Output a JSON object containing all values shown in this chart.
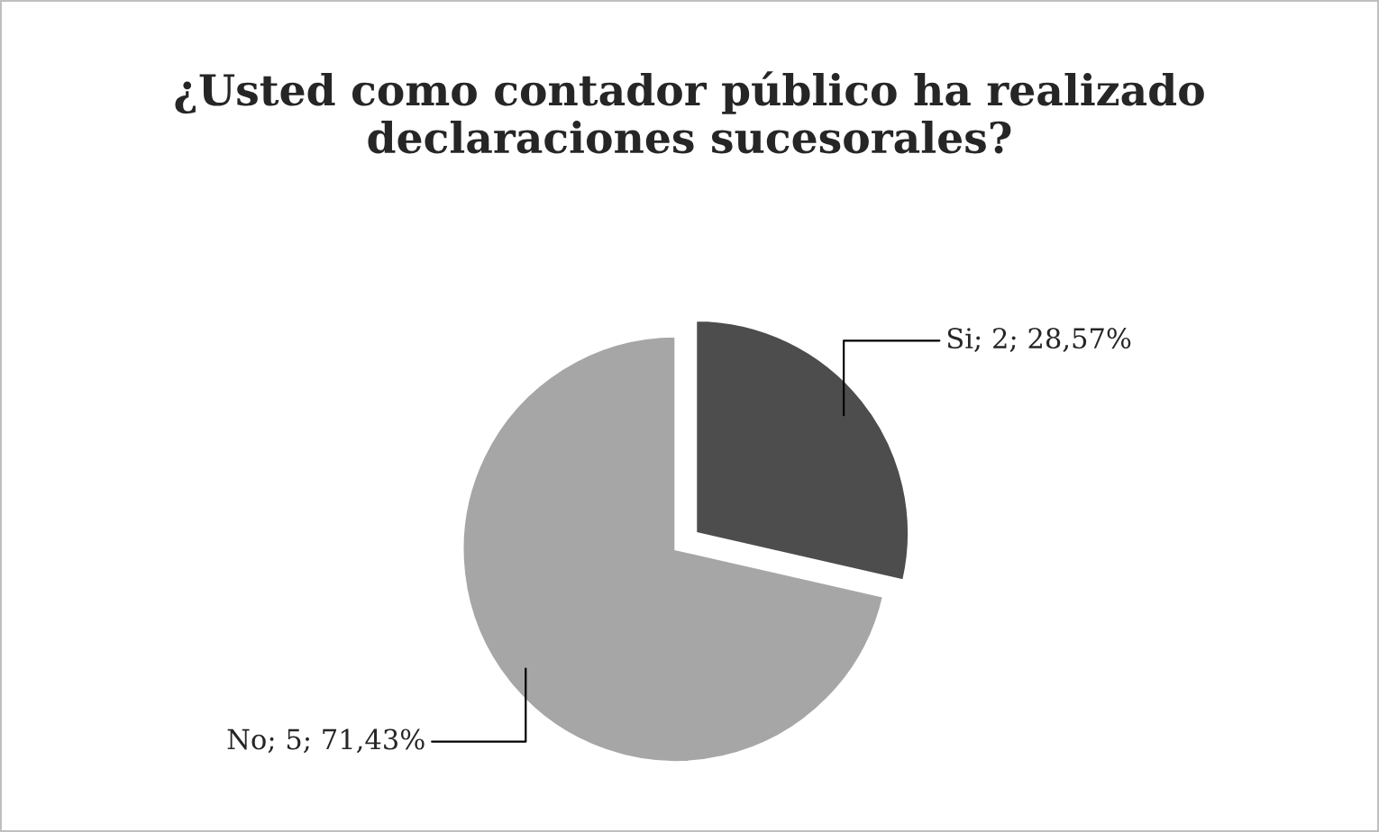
{
  "chart_data": {
    "type": "pie",
    "title": "¿Usted como contador público ha realizado declaraciones sucesorales?",
    "categories": [
      "Si",
      "No"
    ],
    "values": [
      2,
      5
    ],
    "colors": [
      "#4d4d4d",
      "#a6a6a6"
    ],
    "value_labels": [
      "2; 28,57%",
      "5; 71,43%"
    ],
    "legend": false
  }
}
